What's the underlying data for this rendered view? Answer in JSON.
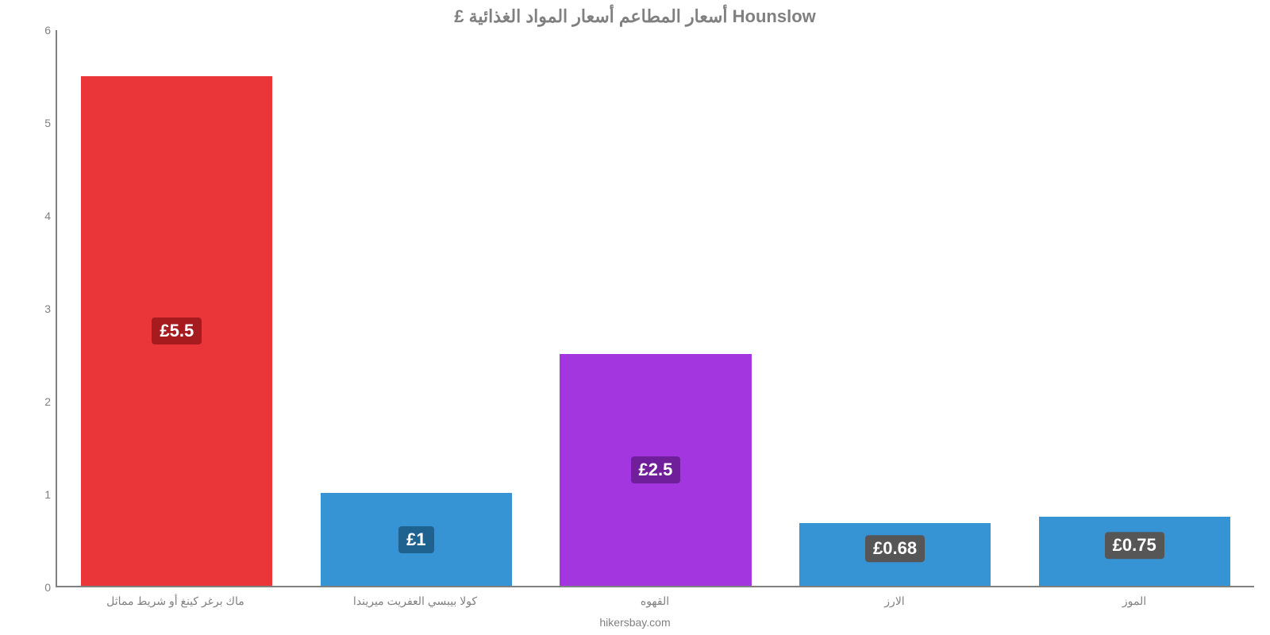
{
  "chart": {
    "type": "bar",
    "title": "£ أسعار المطاعم أسعار المواد الغذائية Hounslow",
    "title_fontsize": 22,
    "title_color": "#808080",
    "background_color": "#ffffff",
    "axis_color": "#808080",
    "axis_label_color": "#808080",
    "axis_label_fontsize": 14,
    "bar_width_percent": 80,
    "ylim": [
      0,
      6
    ],
    "yticks": [
      0,
      1,
      2,
      3,
      4,
      5,
      6
    ],
    "categories": [
      "ماك برغر كينغ أو شريط مماثل",
      "كولا بيبسي العفريت ميريندا",
      "القهوه",
      "الارز",
      "الموز"
    ],
    "values": [
      5.5,
      1.0,
      2.5,
      0.68,
      0.75
    ],
    "bar_colors": [
      "#eb3639",
      "#3794d4",
      "#a436e0",
      "#3794d4",
      "#3794d4"
    ],
    "value_labels": [
      "£5.5",
      "£1",
      "£2.5",
      "£0.68",
      "£0.75"
    ],
    "value_label_fontsize": 22,
    "value_label_color": "#ffffff",
    "value_label_bg": [
      "#a61b1e",
      "#1f628f",
      "#6e1f99",
      "#565656",
      "#565656"
    ],
    "value_label_overflow": [
      false,
      false,
      false,
      true,
      true
    ],
    "footer": "hikersbay.com",
    "footer_fontsize": 14,
    "footer_color": "#808080"
  }
}
